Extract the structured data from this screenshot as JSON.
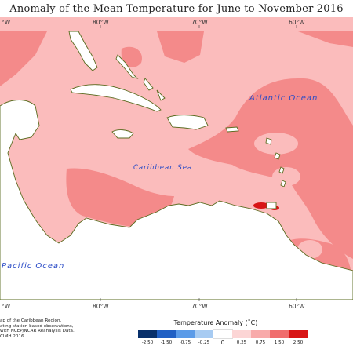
{
  "title": "Anomaly of the Mean Temperature for June to November 2016",
  "axis": {
    "top_ticks": [
      "80°W",
      "70°W",
      "60°W"
    ],
    "bottom_ticks": [
      "80°W",
      "70°W",
      "60°W"
    ],
    "top_left_tick": "°W",
    "bottom_left_tick": "°W"
  },
  "labels": {
    "atlantic": "Atlantic Ocean",
    "caribbean": "Caribbean Sea",
    "pacific": "Pacific Ocean"
  },
  "credit": [
    "ap of the Caribbean Region.",
    "ating station based observations,",
    "with NCEP/NCAR Reanalysis Data.",
    "CIMH 2016"
  ],
  "legend": {
    "title": "Temperature Anomaly (˚C)",
    "bins": [
      {
        "color": "#08306b"
      },
      {
        "color": "#2160c4"
      },
      {
        "color": "#5b9be8"
      },
      {
        "color": "#a7cbf2"
      },
      {
        "color": "#ffffff"
      },
      {
        "color": "#fcd5d5"
      },
      {
        "color": "#f8aaaa"
      },
      {
        "color": "#f06d6d"
      },
      {
        "color": "#d81515"
      }
    ],
    "ticks": [
      "-2.50",
      "-1.50",
      "-0.75",
      "-0.25",
      "0",
      "0.25",
      "0.75",
      "1.50",
      "2.50"
    ]
  },
  "colors": {
    "light_anomaly": "#fbbcbc",
    "mid_anomaly": "#f48a8a",
    "strong_anomaly": "#d81515",
    "land": "#ffffff",
    "coast": "#5a6b1f"
  }
}
